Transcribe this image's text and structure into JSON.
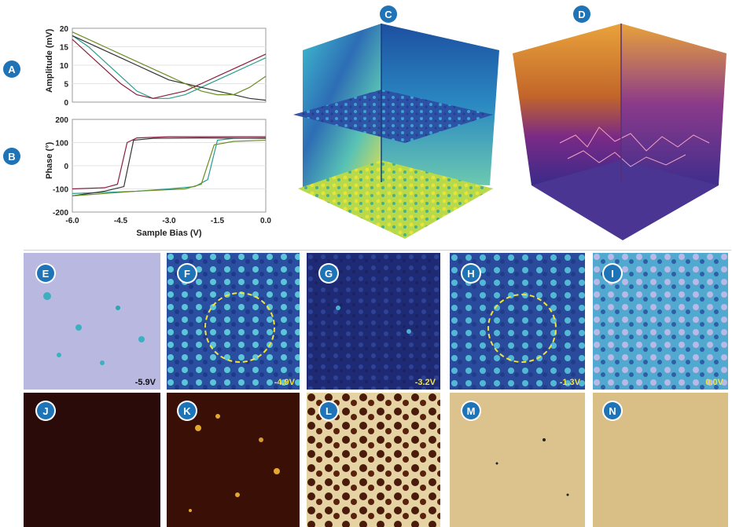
{
  "labels": {
    "a": "A",
    "b": "B",
    "c": "C",
    "d": "D",
    "e": "E",
    "f": "F",
    "g": "G",
    "h": "H",
    "i": "I",
    "j": "J",
    "k": "K",
    "l": "L",
    "m": "M",
    "n": "N"
  },
  "chart_data": [
    {
      "type": "line",
      "panel": "A",
      "ylabel": "Amplitude (mV)",
      "ylim": [
        0,
        20
      ],
      "yticks": [
        "20",
        "15",
        "10",
        "5",
        "0"
      ],
      "xlim": [
        -6.0,
        0.0
      ],
      "series": [
        {
          "color": "#2a9d8f",
          "x": [
            -6,
            -5.5,
            -5,
            -4.5,
            -4,
            -3.5,
            -3,
            -2.5,
            -2,
            -1.5,
            -1,
            -0.5,
            0
          ],
          "y": [
            18,
            15,
            11,
            7,
            3,
            1,
            1,
            2,
            4,
            6,
            8,
            10,
            12
          ]
        },
        {
          "color": "#8b1e3f",
          "x": [
            -6,
            -5.5,
            -5,
            -4.5,
            -4,
            -3.5,
            -3,
            -2.5,
            -2,
            -1.5,
            -1,
            -0.5,
            0
          ],
          "y": [
            17,
            13,
            9,
            5,
            2,
            1,
            2,
            3,
            5,
            7,
            9,
            11,
            13
          ]
        },
        {
          "color": "#333333",
          "x": [
            -6,
            -5.5,
            -5,
            -4.5,
            -4,
            -3.5,
            -3,
            -2.5,
            -2,
            -1.5,
            -1,
            -0.5,
            0
          ],
          "y": [
            18,
            16,
            14,
            12,
            10,
            8,
            6,
            5,
            4,
            3,
            2,
            1,
            0.5
          ]
        },
        {
          "color": "#6b8e23",
          "x": [
            -6,
            -5.5,
            -5,
            -4.5,
            -4,
            -3.5,
            -3,
            -2.5,
            -2,
            -1.5,
            -1,
            -0.5,
            0
          ],
          "y": [
            19,
            17,
            15,
            13,
            11,
            9,
            7,
            5,
            3,
            2,
            2,
            4,
            7
          ]
        }
      ]
    },
    {
      "type": "line",
      "panel": "B",
      "ylabel": "Phase (°)",
      "xlabel": "Sample Bias (V)",
      "ylim": [
        -200,
        200
      ],
      "yticks": [
        "200",
        "100",
        "0",
        "-100",
        "-200"
      ],
      "xlim": [
        -6.0,
        0.0
      ],
      "xticks": [
        "-6.0",
        "-4.5",
        "-3.0",
        "-1.5",
        "0.0"
      ],
      "series": [
        {
          "color": "#8b1e3f",
          "x": [
            -6,
            -5,
            -4.6,
            -4.3,
            -4,
            -3,
            -2,
            -1,
            0
          ],
          "y": [
            -100,
            -95,
            -80,
            100,
            120,
            125,
            125,
            125,
            125
          ]
        },
        {
          "color": "#2a9d8f",
          "x": [
            0,
            -1,
            -1.5,
            -1.8,
            -2.2,
            -3,
            -4,
            -5,
            -6
          ],
          "y": [
            120,
            118,
            110,
            -60,
            -90,
            -100,
            -110,
            -115,
            -120
          ]
        },
        {
          "color": "#333333",
          "x": [
            -6,
            -5,
            -4.4,
            -4.1,
            -3.5,
            -2,
            0
          ],
          "y": [
            -130,
            -110,
            -90,
            110,
            118,
            120,
            118
          ]
        },
        {
          "color": "#6b8e23",
          "x": [
            0,
            -1,
            -1.6,
            -2.0,
            -2.5,
            -4,
            -6
          ],
          "y": [
            110,
            105,
            90,
            -80,
            -100,
            -110,
            -130
          ]
        }
      ]
    }
  ],
  "voltages": {
    "e": "-5.9V",
    "f": "-4.9V",
    "g": "-3.2V",
    "h": "-1.3V",
    "i": "0.0V"
  }
}
